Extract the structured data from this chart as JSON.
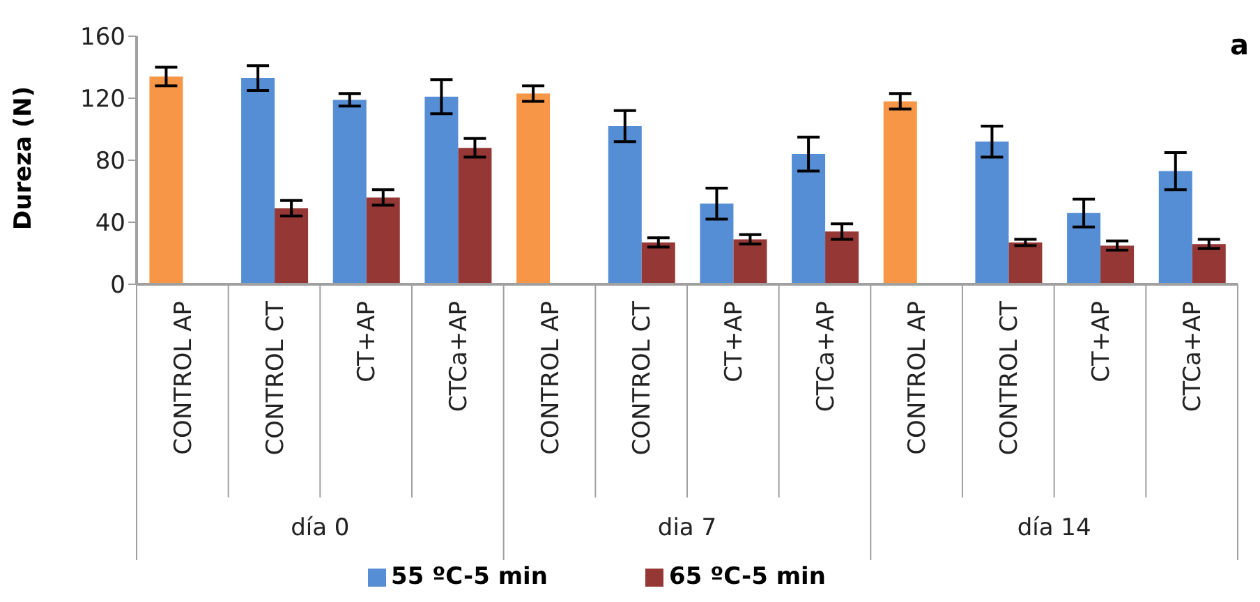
{
  "chart_data": {
    "type": "bar",
    "ylabel": "Dureza (N)",
    "categories": [
      "CONTROL AP",
      "CONTROL CT",
      "CT+AP",
      "CTCa+AP",
      "CONTROL AP",
      "CONTROL CT",
      "CT+AP",
      "CTCa+AP",
      "CONTROL AP",
      "CONTROL CT",
      "CT+AP",
      "CTCa+AP"
    ],
    "series": [
      {
        "name": "55 ºC-5 min",
        "color": "#558ed5",
        "colors": [
          "#f79646",
          "#558ed5",
          "#558ed5",
          "#558ed5",
          "#f79646",
          "#558ed5",
          "#558ed5",
          "#558ed5",
          "#f79646",
          "#558ed5",
          "#558ed5",
          "#558ed5"
        ],
        "values": [
          134,
          133,
          119,
          121,
          123,
          102,
          52,
          84,
          118,
          92,
          46,
          73
        ],
        "errors": [
          6,
          8,
          4,
          11,
          5,
          10,
          10,
          11,
          5,
          10,
          9,
          12
        ]
      },
      {
        "name": "65 ºC-5 min",
        "color": "#953735",
        "values": [
          null,
          49,
          56,
          88,
          null,
          27,
          29,
          34,
          null,
          27,
          25,
          26
        ],
        "errors": [
          null,
          5,
          5,
          6,
          null,
          3,
          3,
          5,
          null,
          2,
          3,
          3
        ]
      }
    ],
    "ylim": [
      0,
      160
    ],
    "yticks": [
      0,
      40,
      80,
      120,
      160
    ],
    "grid": false,
    "legend": "bottom",
    "annotations": [
      "a",
      "día 0",
      "dia 7",
      "día 14"
    ]
  }
}
